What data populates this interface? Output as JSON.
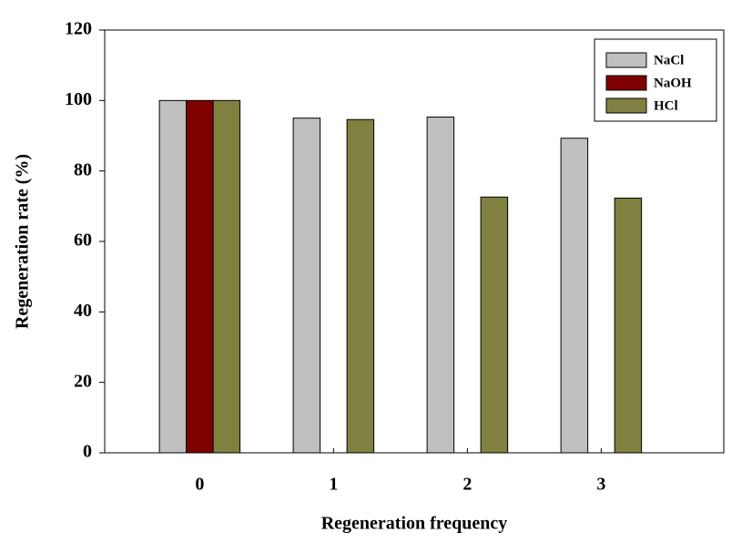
{
  "chart_data": {
    "type": "bar",
    "x_label": "Regeneration frequency",
    "y_label": "Regeneration rate (%)",
    "categories": [
      "0",
      "1",
      "2",
      "3"
    ],
    "series": [
      {
        "name": "NaCl",
        "color": "#c0c0c0",
        "values": [
          100,
          95,
          95.3,
          89.3
        ]
      },
      {
        "name": "NaOH",
        "color": "#800000",
        "values": [
          100,
          null,
          null,
          null
        ]
      },
      {
        "name": "HCl",
        "color": "#808040",
        "values": [
          100,
          94.6,
          72.6,
          72.3
        ]
      }
    ],
    "ylim": [
      0,
      120
    ],
    "yticks": [
      0,
      20,
      40,
      60,
      80,
      100,
      120
    ],
    "legend": "upper-right"
  }
}
